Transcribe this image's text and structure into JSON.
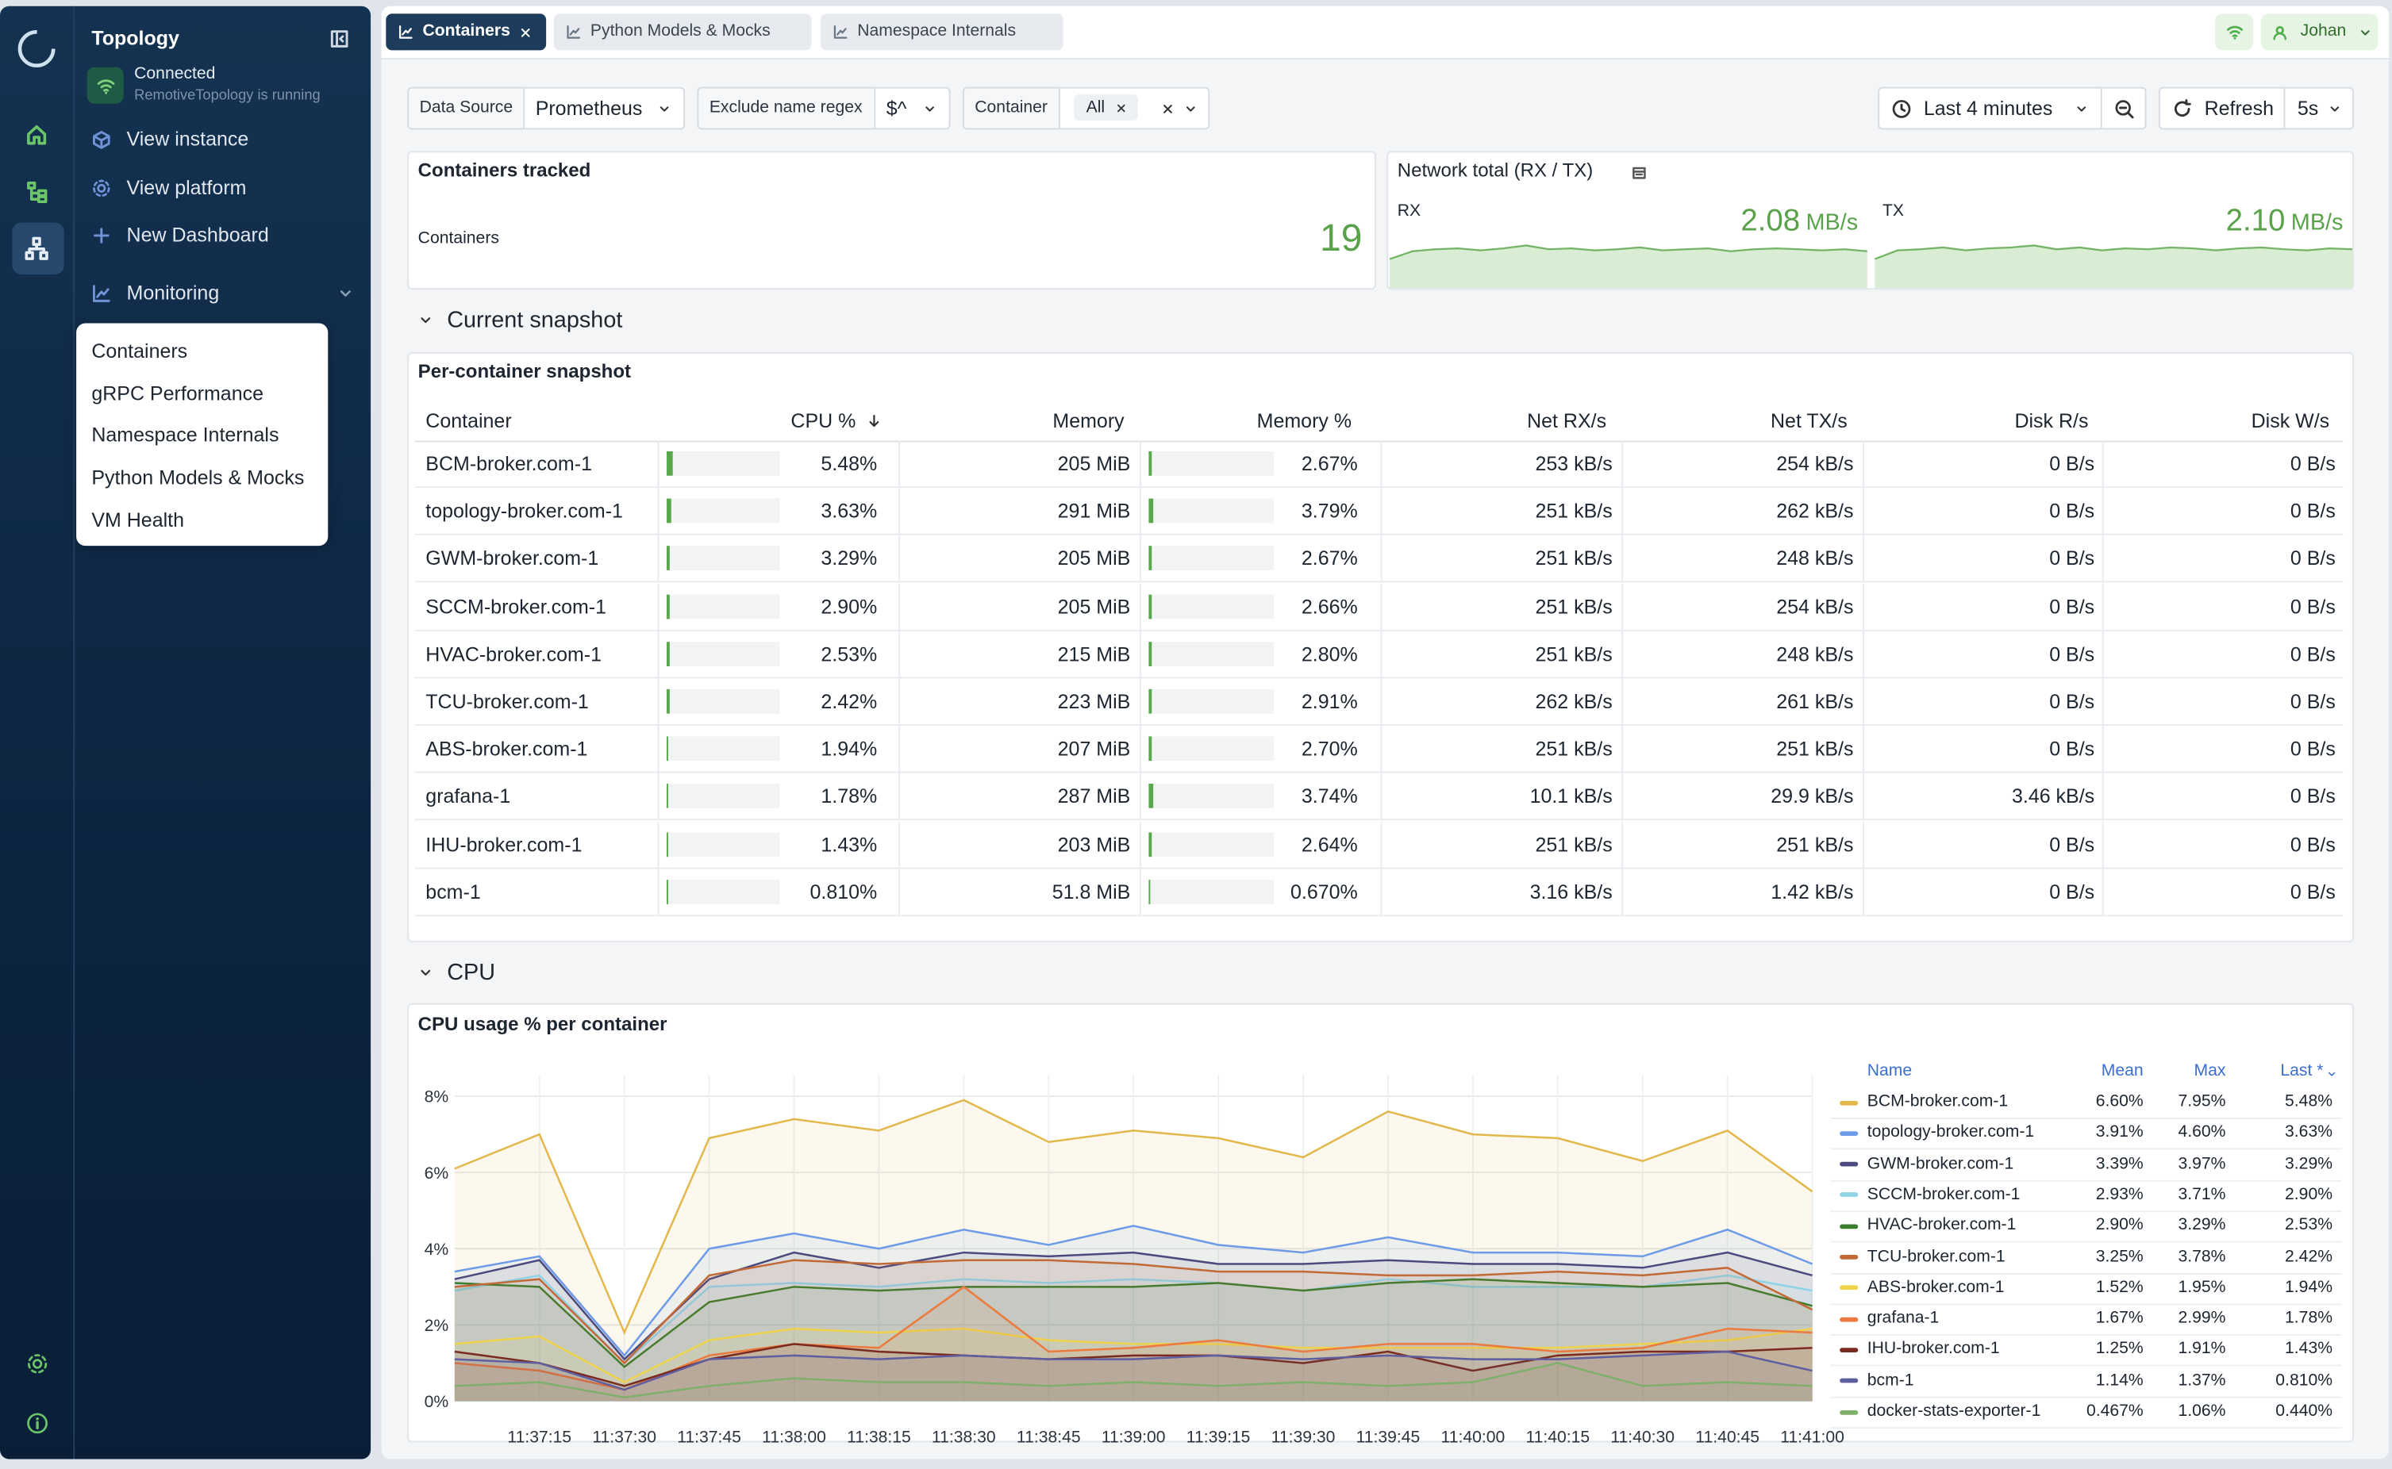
{
  "sidebar": {
    "title": "Topology",
    "status": "Connected",
    "status_detail": "RemotiveTopology is running",
    "nav": [
      "View instance",
      "View platform",
      "New Dashboard"
    ],
    "section": "Monitoring",
    "dashboards": [
      "Containers",
      "gRPC Performance",
      "Namespace Internals",
      "Python Models & Mocks",
      "VM Health"
    ]
  },
  "tabs": [
    "Containers",
    "Python Models & Mocks",
    "Namespace Internals"
  ],
  "user": "Johan",
  "filters": [
    {
      "label": "Data Source",
      "value": "Prometheus"
    },
    {
      "label": "Exclude name regex",
      "value": "$^"
    },
    {
      "label": "Container",
      "value": "All"
    }
  ],
  "time_range": "Last 4 minutes",
  "refresh": "Refresh",
  "refresh_interval": "5s",
  "stat_panel": {
    "title": "Containers tracked",
    "label": "Containers",
    "value": "19"
  },
  "network_panel": {
    "title": "Network total (RX / TX)",
    "rx": {
      "label": "RX",
      "value": "2.08",
      "unit": "MB/s",
      "trend": [
        1.5,
        1.9,
        2.0,
        2.05,
        1.95,
        2.05,
        2.2,
        2.0,
        2.05,
        1.95,
        2.0,
        2.1,
        1.95,
        2.0,
        2.05,
        1.9,
        2.0,
        2.05,
        2.0,
        1.95,
        2.0,
        1.9
      ]
    },
    "tx": {
      "label": "TX",
      "value": "2.10",
      "unit": "MB/s",
      "trend": [
        1.5,
        1.95,
        2.0,
        2.1,
        1.95,
        2.05,
        2.1,
        2.2,
        2.0,
        2.1,
        1.95,
        2.05,
        2.0,
        2.1,
        2.05,
        1.95,
        2.05,
        2.1,
        2.0,
        1.95,
        2.05,
        2.0
      ]
    }
  },
  "snapshot_section": "Current snapshot",
  "snapshot": {
    "title": "Per-container snapshot",
    "columns": [
      "Container",
      "CPU %",
      "Memory",
      "Memory %",
      "Net RX/s",
      "Net TX/s",
      "Disk R/s",
      "Disk W/s"
    ],
    "rows": [
      [
        "BCM-broker.com-1",
        "5.48%",
        "205 MiB",
        "2.67%",
        "253 kB/s",
        "254 kB/s",
        "0 B/s",
        "0 B/s"
      ],
      [
        "topology-broker.com-1",
        "3.63%",
        "291 MiB",
        "3.79%",
        "251 kB/s",
        "262 kB/s",
        "0 B/s",
        "0 B/s"
      ],
      [
        "GWM-broker.com-1",
        "3.29%",
        "205 MiB",
        "2.67%",
        "251 kB/s",
        "248 kB/s",
        "0 B/s",
        "0 B/s"
      ],
      [
        "SCCM-broker.com-1",
        "2.90%",
        "205 MiB",
        "2.66%",
        "251 kB/s",
        "254 kB/s",
        "0 B/s",
        "0 B/s"
      ],
      [
        "HVAC-broker.com-1",
        "2.53%",
        "215 MiB",
        "2.80%",
        "251 kB/s",
        "248 kB/s",
        "0 B/s",
        "0 B/s"
      ],
      [
        "TCU-broker.com-1",
        "2.42%",
        "223 MiB",
        "2.91%",
        "262 kB/s",
        "261 kB/s",
        "0 B/s",
        "0 B/s"
      ],
      [
        "ABS-broker.com-1",
        "1.94%",
        "207 MiB",
        "2.70%",
        "251 kB/s",
        "251 kB/s",
        "0 B/s",
        "0 B/s"
      ],
      [
        "grafana-1",
        "1.78%",
        "287 MiB",
        "3.74%",
        "10.1 kB/s",
        "29.9 kB/s",
        "3.46 kB/s",
        "0 B/s"
      ],
      [
        "IHU-broker.com-1",
        "1.43%",
        "203 MiB",
        "2.64%",
        "251 kB/s",
        "251 kB/s",
        "0 B/s",
        "0 B/s"
      ],
      [
        "bcm-1",
        "0.810%",
        "51.8 MiB",
        "0.670%",
        "3.16 kB/s",
        "1.42 kB/s",
        "0 B/s",
        "0 B/s"
      ]
    ]
  },
  "cpu_section": "CPU",
  "chart_data": {
    "type": "line",
    "title": "CPU usage % per container",
    "x": [
      "11:37:00",
      "11:37:15",
      "11:37:30",
      "11:37:45",
      "11:38:00",
      "11:38:15",
      "11:38:30",
      "11:38:45",
      "11:39:00",
      "11:39:15",
      "11:39:30",
      "11:39:45",
      "11:40:00",
      "11:40:15",
      "11:40:30",
      "11:40:45",
      "11:41:00"
    ],
    "xlim": [
      "11:37:00",
      "11:41:00"
    ],
    "xticks": [
      "11:37:15",
      "11:37:30",
      "11:37:45",
      "11:38:00",
      "11:38:15",
      "11:38:30",
      "11:38:45",
      "11:39:00",
      "11:39:15",
      "11:39:30",
      "11:39:45",
      "11:40:00",
      "11:40:15",
      "11:40:30",
      "11:40:45",
      "11:41:00"
    ],
    "ylim": [
      0,
      8
    ],
    "yticks": [
      {
        "value": 0,
        "label": "0%"
      },
      {
        "value": 2,
        "label": "2%"
      },
      {
        "value": 4,
        "label": "4%"
      },
      {
        "value": 6,
        "label": "6%"
      },
      {
        "value": 8,
        "label": "8%"
      }
    ],
    "grid": true,
    "legend_columns": [
      "Name",
      "Mean",
      "Max",
      "Last *"
    ],
    "series": [
      {
        "name": "BCM-broker.com-1",
        "color": "#e2b84c",
        "values": [
          6.1,
          7.0,
          1.8,
          6.9,
          7.4,
          7.1,
          7.9,
          6.8,
          7.1,
          6.9,
          6.4,
          7.6,
          7.0,
          6.9,
          6.3,
          7.1,
          5.5
        ],
        "stats": [
          "6.60%",
          "7.95%",
          "5.48%"
        ]
      },
      {
        "name": "topology-broker.com-1",
        "color": "#6e9be8",
        "values": [
          3.4,
          3.8,
          1.2,
          4.0,
          4.4,
          4.0,
          4.5,
          4.1,
          4.6,
          4.1,
          3.9,
          4.3,
          3.9,
          3.9,
          3.8,
          4.5,
          3.6
        ],
        "stats": [
          "3.91%",
          "4.60%",
          "3.63%"
        ]
      },
      {
        "name": "GWM-broker.com-1",
        "color": "#4b4a7e",
        "values": [
          3.2,
          3.7,
          1.1,
          3.2,
          3.9,
          3.5,
          3.9,
          3.8,
          3.9,
          3.6,
          3.6,
          3.7,
          3.6,
          3.6,
          3.5,
          3.9,
          3.3
        ],
        "stats": [
          "3.39%",
          "3.97%",
          "3.29%"
        ]
      },
      {
        "name": "SCCM-broker.com-1",
        "color": "#8fd3e8",
        "values": [
          2.9,
          3.3,
          1.0,
          3.0,
          3.1,
          3.0,
          3.2,
          3.1,
          3.2,
          3.1,
          2.9,
          3.2,
          3.0,
          3.0,
          3.0,
          3.3,
          2.9
        ],
        "stats": [
          "2.93%",
          "3.71%",
          "2.90%"
        ]
      },
      {
        "name": "HVAC-broker.com-1",
        "color": "#3b7d2e",
        "values": [
          3.1,
          3.0,
          0.9,
          2.6,
          3.0,
          2.9,
          3.0,
          3.0,
          3.0,
          3.1,
          2.9,
          3.1,
          3.2,
          3.1,
          3.0,
          3.1,
          2.5
        ],
        "stats": [
          "2.90%",
          "3.29%",
          "2.53%"
        ]
      },
      {
        "name": "TCU-broker.com-1",
        "color": "#c26a37",
        "values": [
          3.0,
          3.2,
          1.0,
          3.3,
          3.7,
          3.6,
          3.7,
          3.7,
          3.6,
          3.4,
          3.4,
          3.3,
          3.3,
          3.4,
          3.3,
          3.5,
          2.4
        ],
        "stats": [
          "3.25%",
          "3.78%",
          "2.42%"
        ]
      },
      {
        "name": "ABS-broker.com-1",
        "color": "#efd34a",
        "values": [
          1.5,
          1.7,
          0.5,
          1.6,
          1.9,
          1.8,
          1.9,
          1.6,
          1.5,
          1.5,
          1.4,
          1.4,
          1.4,
          1.4,
          1.5,
          1.6,
          1.9
        ],
        "stats": [
          "1.52%",
          "1.95%",
          "1.94%"
        ]
      },
      {
        "name": "grafana-1",
        "color": "#ec7a3e",
        "values": [
          1.0,
          0.8,
          0.3,
          1.2,
          1.5,
          1.4,
          3.0,
          1.3,
          1.4,
          1.6,
          1.3,
          1.5,
          1.5,
          1.3,
          1.4,
          1.9,
          1.8
        ],
        "stats": [
          "1.67%",
          "2.99%",
          "1.78%"
        ]
      },
      {
        "name": "IHU-broker.com-1",
        "color": "#7a2a1e",
        "values": [
          1.3,
          1.0,
          0.4,
          1.1,
          1.5,
          1.3,
          1.2,
          1.1,
          1.2,
          1.2,
          1.0,
          1.3,
          0.8,
          1.2,
          1.3,
          1.3,
          1.4
        ],
        "stats": [
          "1.25%",
          "1.91%",
          "1.43%"
        ]
      },
      {
        "name": "bcm-1",
        "color": "#5e5ea0",
        "values": [
          1.1,
          1.0,
          0.3,
          1.1,
          1.2,
          1.1,
          1.2,
          1.1,
          1.1,
          1.2,
          1.1,
          1.2,
          1.1,
          1.1,
          1.2,
          1.3,
          0.8
        ],
        "stats": [
          "1.14%",
          "1.37%",
          "0.810%"
        ]
      },
      {
        "name": "docker-stats-exporter-1",
        "color": "#7fb06b",
        "values": [
          0.4,
          0.5,
          0.1,
          0.4,
          0.6,
          0.5,
          0.5,
          0.4,
          0.5,
          0.4,
          0.5,
          0.4,
          0.5,
          1.0,
          0.4,
          0.5,
          0.4
        ],
        "stats": [
          "0.467%",
          "1.06%",
          "0.440%"
        ]
      }
    ]
  }
}
